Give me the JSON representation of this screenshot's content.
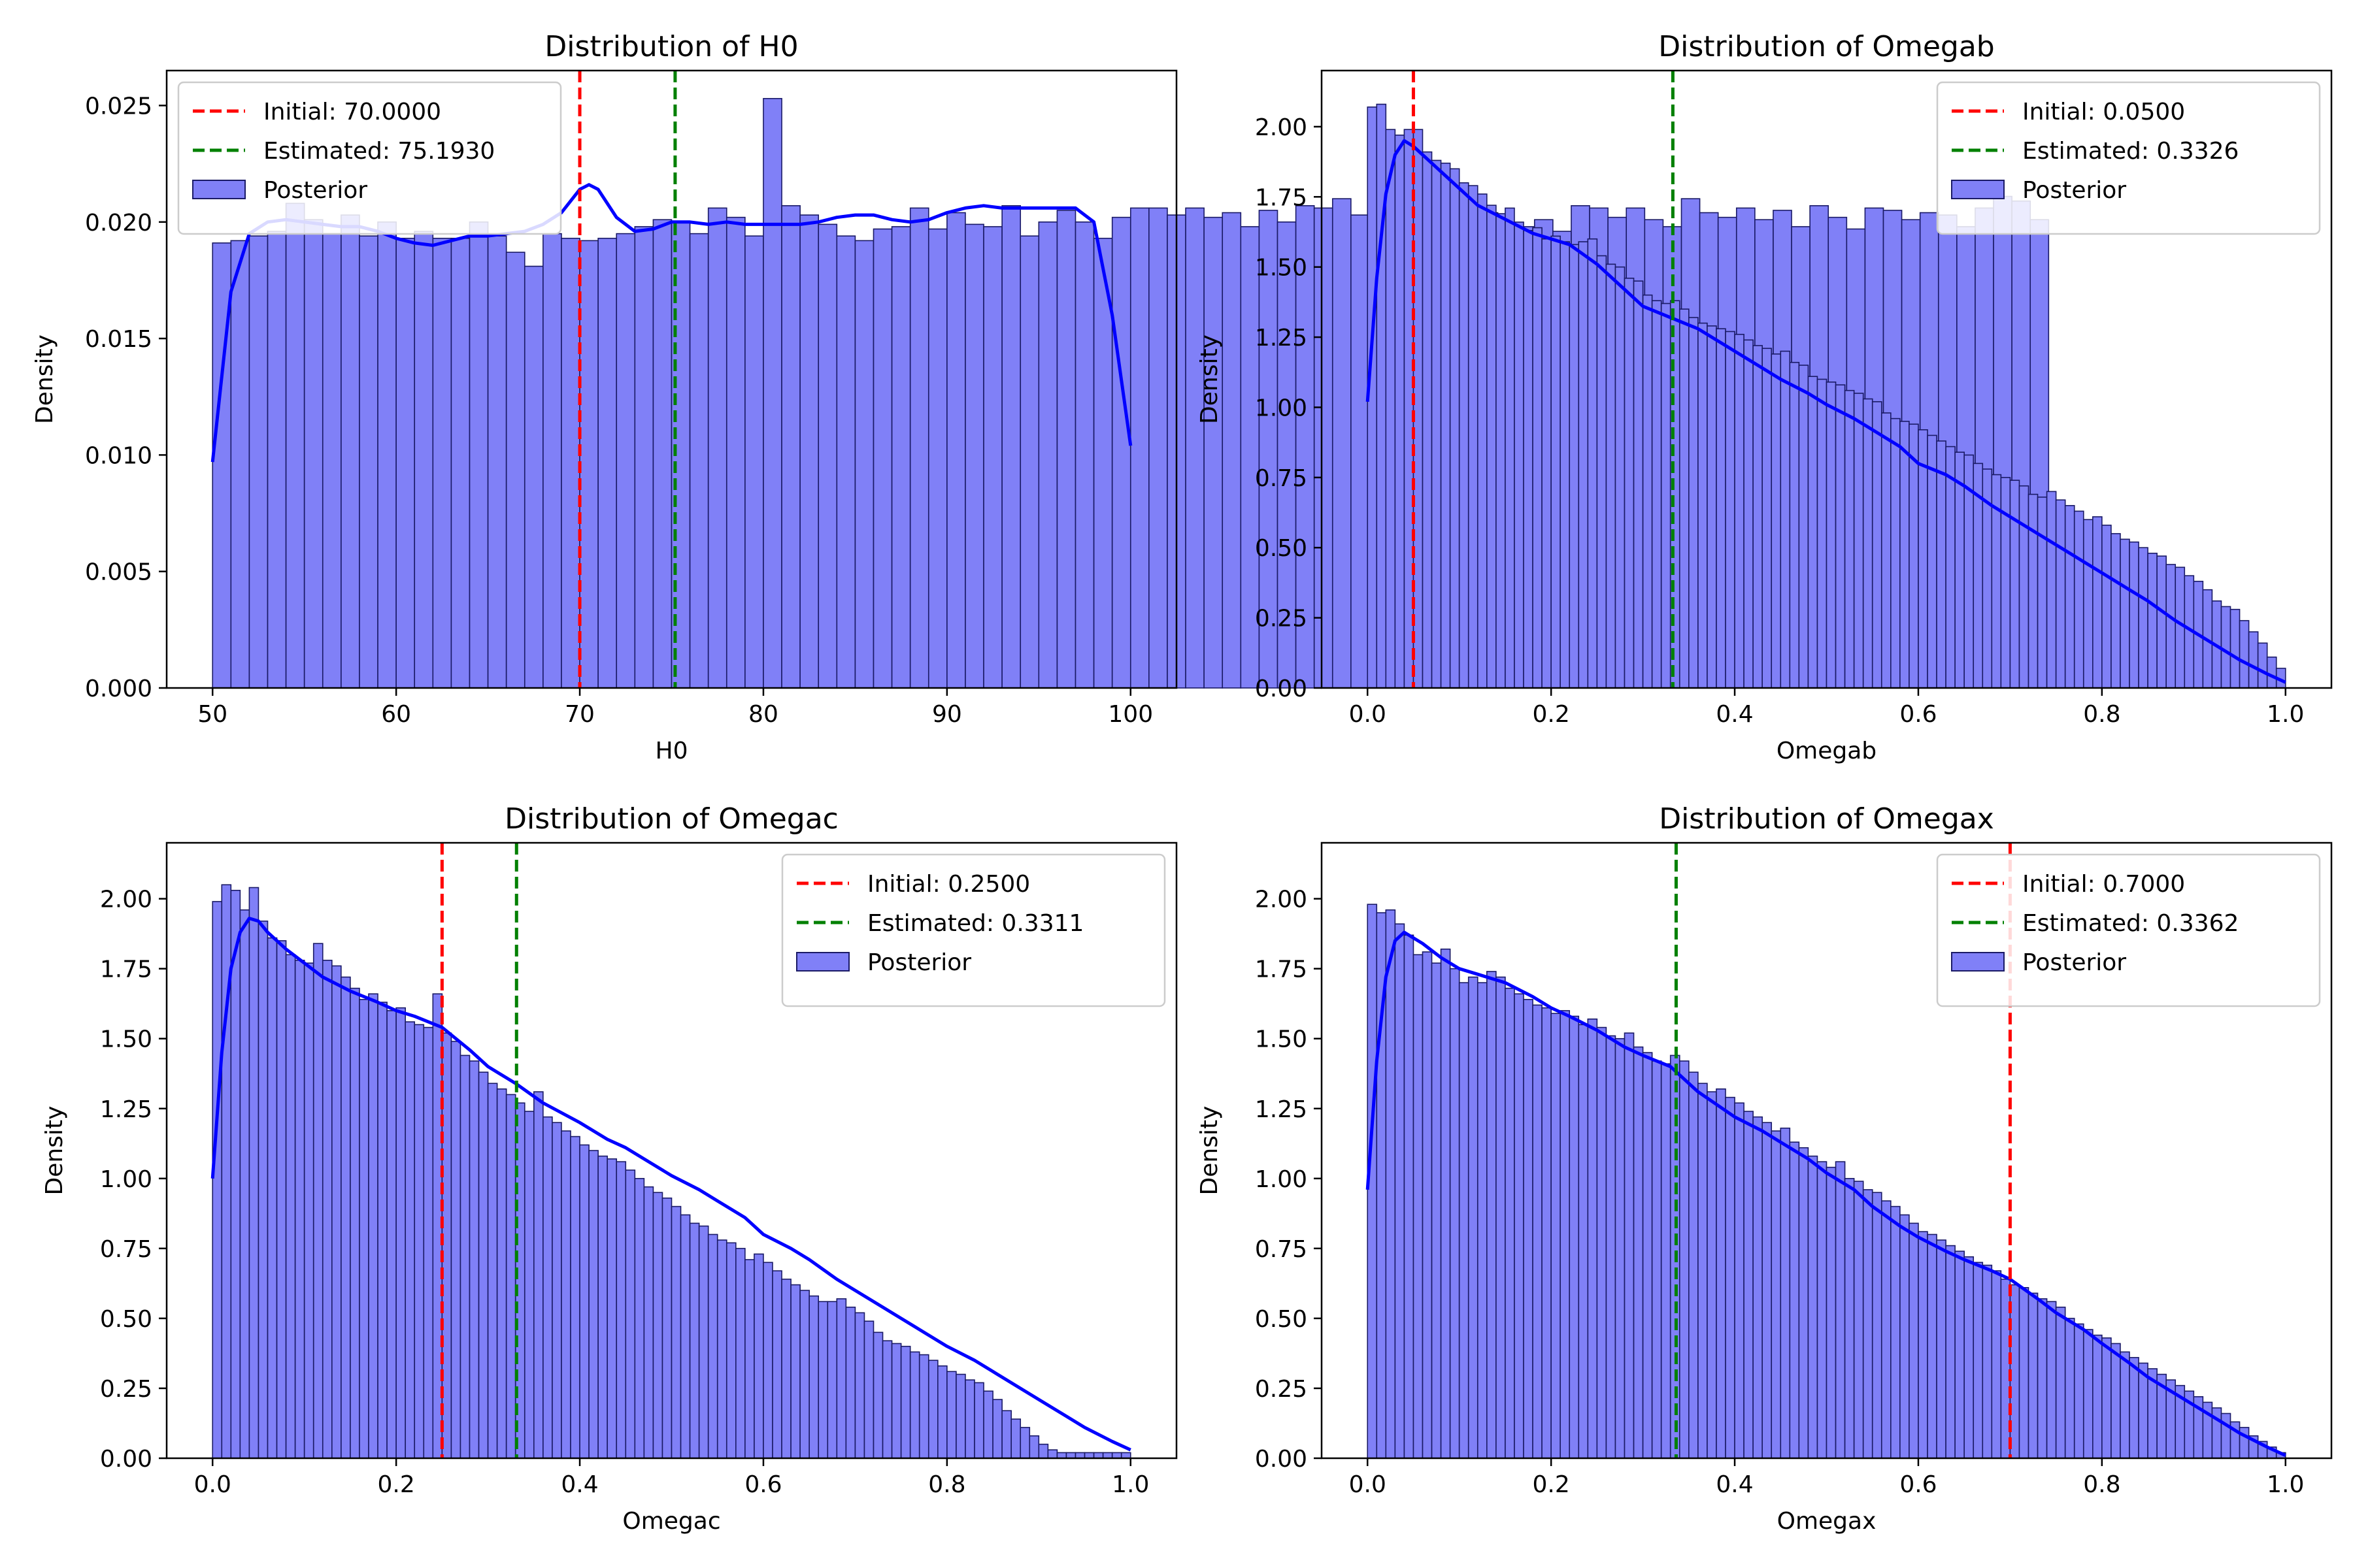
{
  "colors": {
    "bars": "#8080f7",
    "bar_edge": "#1a1a66",
    "kde": "#0000ff",
    "initial": "#ff0000",
    "estimated": "#008000"
  },
  "chart_data": [
    {
      "type": "bar",
      "title": "Distribution of H0",
      "xlabel": "H0",
      "ylabel": "Density",
      "xlim": [
        47.5,
        102.5
      ],
      "ylim": [
        0,
        0.0265
      ],
      "xticks": [
        "50",
        "60",
        "70",
        "80",
        "90",
        "100"
      ],
      "yticks": [
        "0.000",
        "0.005",
        "0.010",
        "0.015",
        "0.020",
        "0.025"
      ],
      "legend_position": "top-left",
      "legend": {
        "initial": "Initial: 70.0000",
        "estimated": "Estimated: 75.1930",
        "posterior": "Posterior"
      },
      "initial": 70.0,
      "estimated": 75.193,
      "bin_start": 50,
      "bin_width": 1,
      "densities": [
        0.0191,
        0.0192,
        0.0194,
        0.0196,
        0.0208,
        0.0201,
        0.0195,
        0.0203,
        0.0194,
        0.02,
        0.0193,
        0.0196,
        0.0193,
        0.0193,
        0.02,
        0.0194,
        0.0187,
        0.0181,
        0.0195,
        0.0193,
        0.0192,
        0.0193,
        0.0195,
        0.0198,
        0.0201,
        0.02,
        0.0195,
        0.0206,
        0.0202,
        0.0194,
        0.0253,
        0.0207,
        0.0203,
        0.0199,
        0.0194,
        0.0192,
        0.0197,
        0.0198,
        0.0206,
        0.0197,
        0.0204,
        0.0199,
        0.0198,
        0.0207,
        0.0194,
        0.02,
        0.0205,
        0.02,
        0.0193,
        0.0202,
        0.0206,
        0.0206,
        0.0203,
        0.0206,
        0.0202,
        0.0204,
        0.0198,
        0.0205,
        0.02,
        0.0207,
        0.0206,
        0.021,
        0.0203,
        0.0205,
        0.0208,
        0.0203,
        0.0198,
        0.0204,
        0.02,
        0.0204,
        0.0199,
        0.0198,
        0.0201,
        0.0196,
        0.0207,
        0.0206,
        0.0202,
        0.0206,
        0.0201,
        0.0198,
        0.021,
        0.0204,
        0.0202,
        0.0206,
        0.0201,
        0.0205,
        0.0198,
        0.0207,
        0.0202,
        0.0197,
        0.0206,
        0.0205,
        0.0201,
        0.0204,
        0.0203,
        0.0198,
        0.0206,
        0.0211,
        0.0209,
        0.0201
      ],
      "kde": {
        "x": [
          50,
          51,
          52,
          53,
          54,
          55,
          56,
          57,
          58,
          59,
          60,
          61,
          62,
          63,
          64,
          65,
          66,
          67,
          68,
          69,
          70,
          70.5,
          71,
          72,
          73,
          74,
          75,
          76,
          77,
          78,
          79,
          80,
          81,
          82,
          83,
          84,
          85,
          86,
          87,
          88,
          89,
          90,
          91,
          92,
          93,
          94,
          95,
          96,
          97,
          98,
          99,
          100
        ],
        "y": [
          0.0097,
          0.017,
          0.0195,
          0.02,
          0.0201,
          0.02,
          0.0199,
          0.0198,
          0.0198,
          0.0196,
          0.0193,
          0.0191,
          0.019,
          0.0192,
          0.0194,
          0.0194,
          0.0195,
          0.0196,
          0.0199,
          0.0204,
          0.0214,
          0.0216,
          0.0214,
          0.0202,
          0.0196,
          0.0197,
          0.02,
          0.02,
          0.0199,
          0.02,
          0.0199,
          0.0199,
          0.0199,
          0.0199,
          0.02,
          0.0202,
          0.0203,
          0.0203,
          0.0201,
          0.02,
          0.0201,
          0.0204,
          0.0206,
          0.0207,
          0.0206,
          0.0206,
          0.0206,
          0.0206,
          0.0206,
          0.02,
          0.016,
          0.0104
        ]
      }
    },
    {
      "type": "bar",
      "title": "Distribution of Omegab",
      "xlabel": "Omegab",
      "ylabel": "Density",
      "xlim": [
        -0.05,
        1.05
      ],
      "ylim": [
        0,
        2.2
      ],
      "xticks": [
        "0.0",
        "0.2",
        "0.4",
        "0.6",
        "0.8",
        "1.0"
      ],
      "yticks": [
        "0.00",
        "0.25",
        "0.50",
        "0.75",
        "1.00",
        "1.25",
        "1.50",
        "1.75",
        "2.00"
      ],
      "legend_position": "top-right",
      "legend": {
        "initial": "Initial: 0.0500",
        "estimated": "Estimated: 0.3326",
        "posterior": "Posterior"
      },
      "initial": 0.05,
      "estimated": 0.3326,
      "bin_start": 0,
      "bin_width": 0.01,
      "densities": [
        2.07,
        2.08,
        1.99,
        1.97,
        1.99,
        1.99,
        1.91,
        1.88,
        1.87,
        1.85,
        1.8,
        1.79,
        1.76,
        1.72,
        1.69,
        1.71,
        1.66,
        1.63,
        1.64,
        1.6,
        1.61,
        1.59,
        1.58,
        1.59,
        1.6,
        1.54,
        1.51,
        1.5,
        1.46,
        1.45,
        1.4,
        1.38,
        1.37,
        1.38,
        1.35,
        1.32,
        1.3,
        1.29,
        1.28,
        1.27,
        1.26,
        1.24,
        1.22,
        1.21,
        1.19,
        1.2,
        1.16,
        1.15,
        1.11,
        1.1,
        1.09,
        1.08,
        1.06,
        1.05,
        1.03,
        1.02,
        0.98,
        0.96,
        0.95,
        0.94,
        0.92,
        0.9,
        0.88,
        0.86,
        0.84,
        0.83,
        0.8,
        0.78,
        0.76,
        0.75,
        0.74,
        0.72,
        0.69,
        0.68,
        0.7,
        0.67,
        0.65,
        0.63,
        0.6,
        0.61,
        0.58,
        0.55,
        0.53,
        0.52,
        0.5,
        0.48,
        0.47,
        0.44,
        0.43,
        0.4,
        0.38,
        0.35,
        0.31,
        0.29,
        0.28,
        0.24,
        0.2,
        0.16,
        0.11,
        0.07
      ],
      "kde": {
        "x": [
          0,
          0.01,
          0.02,
          0.03,
          0.04,
          0.05,
          0.06,
          0.08,
          0.1,
          0.12,
          0.15,
          0.18,
          0.2,
          0.22,
          0.25,
          0.28,
          0.3,
          0.33,
          0.36,
          0.4,
          0.43,
          0.45,
          0.48,
          0.5,
          0.53,
          0.55,
          0.58,
          0.6,
          0.63,
          0.65,
          0.68,
          0.7,
          0.73,
          0.75,
          0.78,
          0.8,
          0.83,
          0.85,
          0.88,
          0.9,
          0.93,
          0.95,
          0.98,
          1.0
        ],
        "y": [
          1.02,
          1.46,
          1.76,
          1.9,
          1.95,
          1.93,
          1.9,
          1.84,
          1.78,
          1.72,
          1.67,
          1.62,
          1.6,
          1.58,
          1.51,
          1.42,
          1.36,
          1.32,
          1.28,
          1.2,
          1.14,
          1.1,
          1.05,
          1.01,
          0.96,
          0.92,
          0.86,
          0.8,
          0.76,
          0.72,
          0.65,
          0.61,
          0.55,
          0.51,
          0.45,
          0.41,
          0.35,
          0.31,
          0.24,
          0.2,
          0.14,
          0.1,
          0.05,
          0.02
        ]
      }
    },
    {
      "type": "bar",
      "title": "Distribution of Omegac",
      "xlabel": "Omegac",
      "ylabel": "Density",
      "xlim": [
        -0.05,
        1.05
      ],
      "ylim": [
        0,
        2.2
      ],
      "xticks": [
        "0.0",
        "0.2",
        "0.4",
        "0.6",
        "0.8",
        "1.0"
      ],
      "yticks": [
        "0.00",
        "0.25",
        "0.50",
        "0.75",
        "1.00",
        "1.25",
        "1.50",
        "1.75",
        "2.00"
      ],
      "legend_position": "top-right",
      "legend": {
        "initial": "Initial: 0.2500",
        "estimated": "Estimated: 0.3311",
        "posterior": "Posterior"
      },
      "initial": 0.25,
      "estimated": 0.3311,
      "bin_start": 0,
      "bin_width": 0.01,
      "densities": [
        1.99,
        2.05,
        2.03,
        1.96,
        2.04,
        1.92,
        1.86,
        1.85,
        1.8,
        1.78,
        1.77,
        1.84,
        1.78,
        1.76,
        1.72,
        1.68,
        1.64,
        1.66,
        1.63,
        1.6,
        1.61,
        1.56,
        1.55,
        1.54,
        1.66,
        1.52,
        1.49,
        1.44,
        1.42,
        1.38,
        1.34,
        1.32,
        1.3,
        1.27,
        1.24,
        1.31,
        1.22,
        1.2,
        1.17,
        1.15,
        1.12,
        1.1,
        1.08,
        1.07,
        1.06,
        1.03,
        1.0,
        0.97,
        0.95,
        0.93,
        0.9,
        0.87,
        0.84,
        0.83,
        0.8,
        0.78,
        0.77,
        0.75,
        0.71,
        0.73,
        0.7,
        0.67,
        0.64,
        0.62,
        0.6,
        0.58,
        0.56,
        0.56,
        0.57,
        0.54,
        0.52,
        0.49,
        0.45,
        0.42,
        0.41,
        0.4,
        0.38,
        0.37,
        0.35,
        0.33,
        0.31,
        0.3,
        0.28,
        0.27,
        0.24,
        0.21,
        0.17,
        0.14,
        0.11,
        0.08,
        0.05,
        0.03,
        0.02,
        0.02,
        0.02,
        0.02,
        0.02,
        0.02,
        0.02,
        0.02
      ],
      "kde": {
        "x": [
          0,
          0.01,
          0.02,
          0.03,
          0.04,
          0.05,
          0.06,
          0.08,
          0.1,
          0.12,
          0.15,
          0.18,
          0.2,
          0.22,
          0.25,
          0.28,
          0.3,
          0.33,
          0.36,
          0.4,
          0.43,
          0.45,
          0.48,
          0.5,
          0.53,
          0.55,
          0.58,
          0.6,
          0.63,
          0.65,
          0.68,
          0.7,
          0.73,
          0.75,
          0.78,
          0.8,
          0.83,
          0.85,
          0.88,
          0.9,
          0.93,
          0.95,
          0.98,
          1.0
        ],
        "y": [
          1.0,
          1.45,
          1.75,
          1.88,
          1.93,
          1.92,
          1.88,
          1.82,
          1.77,
          1.72,
          1.67,
          1.63,
          1.6,
          1.58,
          1.54,
          1.46,
          1.4,
          1.34,
          1.27,
          1.2,
          1.14,
          1.11,
          1.05,
          1.01,
          0.96,
          0.92,
          0.86,
          0.8,
          0.75,
          0.71,
          0.64,
          0.6,
          0.54,
          0.5,
          0.44,
          0.4,
          0.35,
          0.31,
          0.25,
          0.21,
          0.15,
          0.11,
          0.06,
          0.03
        ]
      }
    },
    {
      "type": "bar",
      "title": "Distribution of Omegax",
      "xlabel": "Omegax",
      "ylabel": "Density",
      "xlim": [
        -0.05,
        1.05
      ],
      "ylim": [
        0,
        2.2
      ],
      "xticks": [
        "0.0",
        "0.2",
        "0.4",
        "0.6",
        "0.8",
        "1.0"
      ],
      "yticks": [
        "0.00",
        "0.25",
        "0.50",
        "0.75",
        "1.00",
        "1.25",
        "1.50",
        "1.75",
        "2.00"
      ],
      "legend_position": "top-right",
      "legend": {
        "initial": "Initial: 0.7000",
        "estimated": "Estimated: 0.3362",
        "posterior": "Posterior"
      },
      "initial": 0.7,
      "estimated": 0.3362,
      "bin_start": 0,
      "bin_width": 0.01,
      "densities": [
        1.98,
        1.95,
        1.96,
        1.91,
        1.87,
        1.8,
        1.81,
        1.77,
        1.82,
        1.75,
        1.7,
        1.72,
        1.7,
        1.74,
        1.72,
        1.68,
        1.66,
        1.64,
        1.62,
        1.61,
        1.59,
        1.6,
        1.58,
        1.55,
        1.57,
        1.54,
        1.51,
        1.5,
        1.52,
        1.47,
        1.45,
        1.42,
        1.41,
        1.44,
        1.42,
        1.38,
        1.34,
        1.31,
        1.32,
        1.29,
        1.27,
        1.24,
        1.22,
        1.2,
        1.17,
        1.18,
        1.13,
        1.11,
        1.08,
        1.06,
        1.04,
        1.06,
        1.0,
        0.99,
        0.96,
        0.95,
        0.92,
        0.9,
        0.87,
        0.84,
        0.81,
        0.8,
        0.78,
        0.76,
        0.74,
        0.72,
        0.7,
        0.69,
        0.67,
        0.64,
        0.62,
        0.61,
        0.59,
        0.57,
        0.56,
        0.54,
        0.5,
        0.48,
        0.46,
        0.44,
        0.43,
        0.41,
        0.38,
        0.36,
        0.34,
        0.32,
        0.3,
        0.28,
        0.26,
        0.24,
        0.22,
        0.2,
        0.18,
        0.16,
        0.13,
        0.11,
        0.08,
        0.06,
        0.04,
        0.02
      ],
      "kde": {
        "x": [
          0,
          0.01,
          0.02,
          0.03,
          0.04,
          0.05,
          0.06,
          0.08,
          0.1,
          0.12,
          0.15,
          0.18,
          0.2,
          0.22,
          0.25,
          0.28,
          0.3,
          0.33,
          0.36,
          0.4,
          0.43,
          0.45,
          0.48,
          0.5,
          0.53,
          0.55,
          0.58,
          0.6,
          0.63,
          0.65,
          0.68,
          0.7,
          0.73,
          0.75,
          0.78,
          0.8,
          0.83,
          0.85,
          0.88,
          0.9,
          0.93,
          0.95,
          0.98,
          1.0
        ],
        "y": [
          0.96,
          1.42,
          1.72,
          1.85,
          1.88,
          1.86,
          1.84,
          1.79,
          1.75,
          1.73,
          1.7,
          1.65,
          1.61,
          1.58,
          1.53,
          1.47,
          1.44,
          1.4,
          1.31,
          1.22,
          1.17,
          1.13,
          1.07,
          1.02,
          0.96,
          0.9,
          0.83,
          0.79,
          0.74,
          0.71,
          0.67,
          0.64,
          0.57,
          0.52,
          0.46,
          0.41,
          0.34,
          0.29,
          0.23,
          0.19,
          0.13,
          0.09,
          0.04,
          0.01
        ]
      }
    }
  ]
}
